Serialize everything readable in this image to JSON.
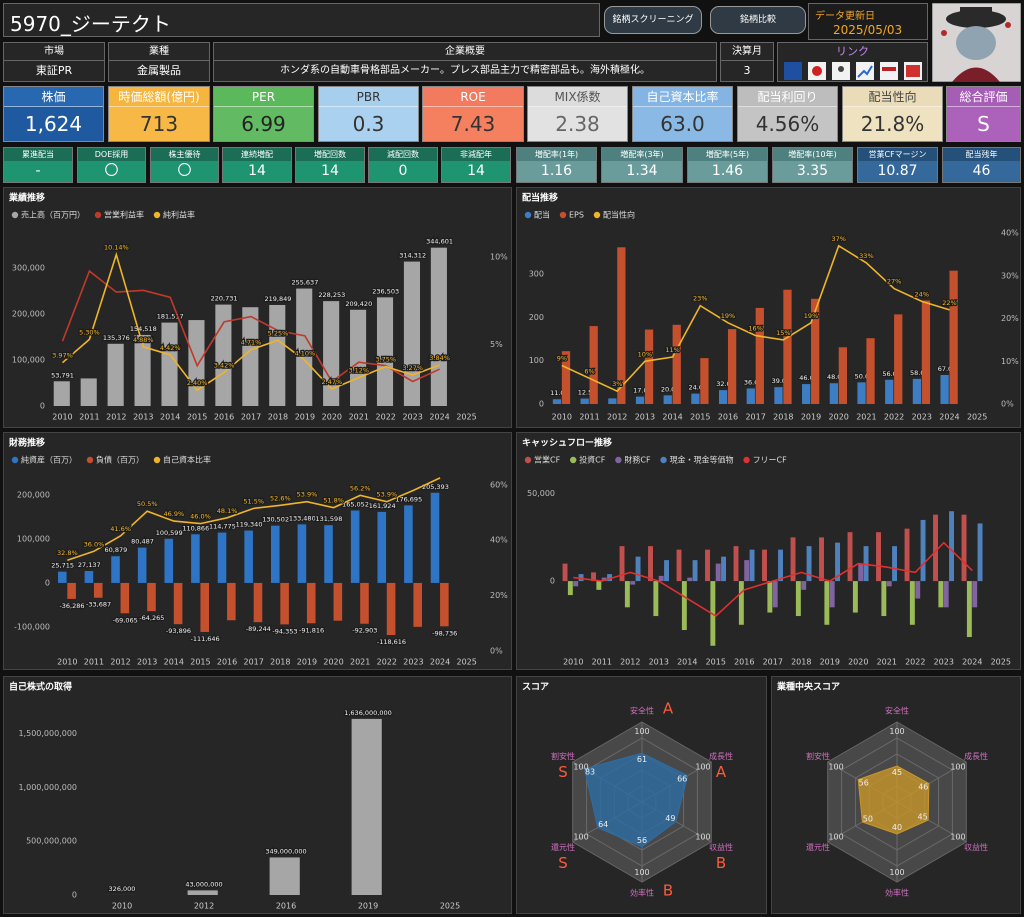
{
  "header": {
    "title": "5970_ジーテクト",
    "buttons": [
      "銘柄スクリーニング",
      "銘柄比較"
    ],
    "update_label": "データ更新日",
    "update_date": "2025/05/03"
  },
  "info": {
    "market": {
      "label": "市場",
      "value": "東証PR"
    },
    "industry": {
      "label": "業種",
      "value": "金属製品"
    },
    "overview": {
      "label": "企業概要",
      "value": "ホンダ系の自動車骨格部品メーカー。プレス部品主力で精密部品も。海外積極化。"
    },
    "fiscal_month": {
      "label": "決算月",
      "value": "3"
    },
    "links": {
      "label": "リンク"
    }
  },
  "metrics": [
    {
      "label": "株価",
      "value": "1,624"
    },
    {
      "label": "時価総額(億円)",
      "value": "713"
    },
    {
      "label": "PER",
      "value": "6.99"
    },
    {
      "label": "PBR",
      "value": "0.3"
    },
    {
      "label": "ROE",
      "value": "7.43"
    },
    {
      "label": "MIX係数",
      "value": "2.38"
    },
    {
      "label": "自己資本比率",
      "value": "63.0"
    },
    {
      "label": "配当利回り",
      "value": "4.56%"
    },
    {
      "label": "配当性向",
      "value": "21.8%"
    },
    {
      "label": "総合評価",
      "value": "S"
    }
  ],
  "sub_metrics": [
    {
      "label": "累進配当",
      "value": "-"
    },
    {
      "label": "DOE採用",
      "value": "〇"
    },
    {
      "label": "株主優待",
      "value": "〇"
    },
    {
      "label": "連続増配",
      "value": "14"
    },
    {
      "label": "増配回数",
      "value": "14"
    },
    {
      "label": "減配回数",
      "value": "0"
    },
    {
      "label": "非減配年",
      "value": "14"
    },
    {
      "label": "増配率(1年)",
      "value": "1.16"
    },
    {
      "label": "増配率(3年)",
      "value": "1.34"
    },
    {
      "label": "増配率(5年)",
      "value": "1.46"
    },
    {
      "label": "増配率(10年)",
      "value": "3.35"
    },
    {
      "label": "営業CFマージン",
      "value": "10.87"
    },
    {
      "label": "配当残年",
      "value": "46"
    }
  ],
  "chart_data": [
    {
      "type": "combo",
      "title": "業績推移",
      "categories": [
        "2010",
        "2011",
        "2012",
        "2013",
        "2014",
        "2015",
        "2016",
        "2017",
        "2018",
        "2019",
        "2020",
        "2021",
        "2022",
        "2023",
        "2024",
        "2025"
      ],
      "series": [
        {
          "name": "売上高（百万円）",
          "color": "#a6a6a6",
          "mark": "bar",
          "values": [
            53791,
            60000,
            135376,
            154518,
            181517,
            187000,
            220731,
            215000,
            219849,
            255637,
            228253,
            209420,
            236503,
            314312,
            344601,
            null
          ],
          "value_labels": [
            "53,791",
            null,
            "135,376",
            "154,518",
            "181,517",
            null,
            "220,731",
            null,
            "219,849",
            "255,637",
            "228,253",
            "209,420",
            "236,503",
            "314,312",
            "344,601",
            null
          ]
        },
        {
          "name": "営業利益率",
          "color": "#c0392b",
          "mark": "line",
          "axis": "y2",
          "values": [
            5.2,
            9.2,
            8.0,
            8.1,
            7.7,
            3.8,
            6.3,
            6.6,
            5.8,
            5.5,
            2.9,
            4.0,
            3.8,
            2.9,
            3.6,
            null
          ]
        },
        {
          "name": "純利益率",
          "color": "#f0b429",
          "mark": "line",
          "axis": "y2",
          "values": [
            3.97,
            5.3,
            10.14,
            4.88,
            4.42,
            2.4,
            3.42,
            4.71,
            5.25,
            4.1,
            2.47,
            3.12,
            3.75,
            3.27,
            3.84,
            null
          ],
          "value_labels": [
            "3.97%",
            "5.30%",
            "10.14%",
            "4.88%",
            "4.42%",
            "2.40%",
            "3.42%",
            "4.71%",
            "5.25%",
            "4.10%",
            "2.47%",
            "3.12%",
            "3.75%",
            "3.27%",
            "3.84%",
            null
          ]
        }
      ],
      "ylim": [
        0,
        370000
      ],
      "yticks": [
        0,
        {
          "value": 100000,
          "label": "100,000"
        },
        {
          "value": 200000,
          "label": "200,000"
        },
        {
          "value": 300000,
          "label": "300,000"
        }
      ],
      "y2lim": [
        1.5,
        11.2
      ],
      "y2ticks": [
        {
          "value": 5,
          "label": "5%"
        },
        {
          "value": 10,
          "label": "10%"
        }
      ],
      "grid": false
    },
    {
      "type": "combo",
      "title": "配当推移",
      "categories": [
        "2010",
        "2011",
        "2012",
        "2013",
        "2014",
        "2015",
        "2016",
        "2017",
        "2018",
        "2019",
        "2020",
        "2021",
        "2022",
        "2023",
        "2024",
        "2025"
      ],
      "series": [
        {
          "name": "配当",
          "color": "#3c7dc4",
          "mark": "bar",
          "values": [
            11.0,
            12.5,
            13.0,
            17.0,
            20.0,
            24.0,
            32.0,
            36.0,
            39.0,
            46.0,
            48.0,
            50.0,
            56.0,
            58.0,
            67.0,
            null
          ],
          "value_labels": [
            "11.0",
            "12.5",
            null,
            "17.0",
            "20.0",
            "24.0",
            "32.0",
            "36.0",
            "39.0",
            "46.0",
            "48.0",
            "50.0",
            "56.0",
            "58.0",
            "67.0",
            null
          ]
        },
        {
          "name": "EPS",
          "color": "#c5502d",
          "mark": "bar",
          "values": [
            122,
            180,
            362,
            172,
            183,
            106,
            173,
            222,
            264,
            243,
            131,
            152,
            207,
            239,
            308,
            null
          ]
        },
        {
          "name": "配当性向",
          "color": "#f0b429",
          "mark": "line",
          "axis": "y2",
          "values": [
            9,
            6,
            3,
            10,
            11,
            23,
            19,
            16,
            15,
            19,
            37,
            33,
            27,
            24,
            22,
            null
          ],
          "value_labels": [
            "9%",
            "6%",
            "3%",
            "10%",
            "11%",
            "23%",
            "19%",
            "16%",
            "15%",
            "19%",
            "37%",
            "33%",
            "27%",
            "24%",
            "22%",
            null
          ]
        }
      ],
      "ylim": [
        0,
        395
      ],
      "yticks": [
        0,
        100,
        200,
        300
      ],
      "y2lim": [
        0,
        40
      ],
      "y2ticks": [
        {
          "value": 0,
          "label": "0%"
        },
        {
          "value": 10,
          "label": "10%"
        },
        {
          "value": 20,
          "label": "20%"
        },
        {
          "value": 30,
          "label": "30%"
        },
        {
          "value": 40,
          "label": "40%"
        }
      ],
      "grid": false
    },
    {
      "type": "combo",
      "title": "財務推移",
      "categories": [
        "2010",
        "2011",
        "2012",
        "2013",
        "2014",
        "2015",
        "2016",
        "2017",
        "2018",
        "2019",
        "2020",
        "2021",
        "2022",
        "2023",
        "2024",
        "2025"
      ],
      "series": [
        {
          "name": "純資産（百万）",
          "color": "#2e75c6",
          "mark": "bar",
          "values": [
            25715,
            27137,
            60879,
            80487,
            100599,
            110866,
            114775,
            119340,
            130502,
            133480,
            131598,
            165052,
            161924,
            176695,
            205393,
            null
          ],
          "value_labels": [
            "25,715",
            "27,137",
            "60,879",
            "80,487",
            "100,599",
            "110,866",
            "114,775",
            "119,340",
            "130,502",
            "133,480",
            "131,598",
            "165,052",
            "161,924",
            "176,695",
            "205,393",
            null
          ]
        },
        {
          "name": "負債（百万）",
          "color": "#c5502d",
          "mark": "bar",
          "values": [
            -36286,
            -33687,
            -69065,
            -64265,
            -93896,
            -111646,
            -85000,
            -89244,
            -94353,
            -91816,
            -86000,
            -92903,
            -118616,
            -100000,
            -98736,
            null
          ],
          "value_labels": [
            "-36,286",
            "-33,687",
            "-69,065",
            "-64,265",
            "-93,896",
            "-111,646",
            null,
            "-89,244",
            "-94,353",
            "-91,816",
            null,
            "-92,903",
            "-118,616",
            null,
            "-98,736",
            null
          ]
        },
        {
          "name": "自己資本比率",
          "color": "#f0b429",
          "mark": "line",
          "axis": "y2",
          "values": [
            32.8,
            36.0,
            41.6,
            50.5,
            46.9,
            46.0,
            48.1,
            51.5,
            52.6,
            53.9,
            51.8,
            56.2,
            53.9,
            58.0,
            62.5,
            null
          ],
          "value_labels": [
            "32.8%",
            "36.0%",
            "41.6%",
            "50.5%",
            "46.9%",
            "46.0%",
            "48.1%",
            "51.5%",
            "52.6%",
            "53.9%",
            "51.8%",
            "56.2%",
            "53.9%",
            null,
            null,
            null
          ]
        }
      ],
      "ylim": [
        -155000,
        255000
      ],
      "yticks": [
        {
          "value": -100000,
          "label": "-100,000"
        },
        0,
        {
          "value": 100000,
          "label": "100,000"
        },
        {
          "value": 200000,
          "label": "200,000"
        }
      ],
      "y2lim": [
        0,
        65
      ],
      "y2ticks": [
        {
          "value": 0,
          "label": "0%"
        },
        {
          "value": 20,
          "label": "20%"
        },
        {
          "value": 40,
          "label": "40%"
        },
        {
          "value": 60,
          "label": "60%"
        }
      ],
      "grid": false
    },
    {
      "type": "combo",
      "title": "キャッシュフロー推移",
      "categories": [
        "2010",
        "2011",
        "2012",
        "2013",
        "2014",
        "2015",
        "2016",
        "2017",
        "2018",
        "2019",
        "2020",
        "2021",
        "2022",
        "2023",
        "2024",
        "2025"
      ],
      "series": [
        {
          "name": "営業CF",
          "color": "#c0504d",
          "mark": "bar",
          "values": [
            10000,
            5000,
            20000,
            20000,
            18000,
            18000,
            20000,
            18000,
            25000,
            25000,
            28000,
            28000,
            30000,
            38000,
            38000,
            null
          ]
        },
        {
          "name": "投資CF",
          "color": "#9bbb59",
          "mark": "bar",
          "values": [
            -8000,
            -5000,
            -15000,
            -20000,
            -28000,
            -37000,
            -25000,
            -18000,
            -20000,
            -25000,
            -18000,
            -20000,
            -25000,
            -15000,
            -32000,
            null
          ]
        },
        {
          "name": "財務CF",
          "color": "#8064a2",
          "mark": "bar",
          "values": [
            -3000,
            2000,
            -2000,
            3000,
            2000,
            10000,
            12000,
            -15000,
            -5000,
            -15000,
            10000,
            -3000,
            -10000,
            -15000,
            -15000,
            null
          ]
        },
        {
          "name": "現金・現金等価物",
          "color": "#4f81bd",
          "mark": "bar",
          "values": [
            4000,
            4000,
            14000,
            12000,
            12000,
            14000,
            18000,
            18000,
            20000,
            22000,
            20000,
            20000,
            35000,
            40000,
            33000,
            null
          ]
        },
        {
          "name": "フリーCF",
          "color": "#e03030",
          "mark": "line",
          "values": [
            2000,
            0,
            5000,
            0,
            -10000,
            -20000,
            -5000,
            0,
            5000,
            0,
            10000,
            8000,
            5000,
            22000,
            6000,
            null
          ]
        }
      ],
      "ylim": [
        -40000,
        63000
      ],
      "yticks": [
        0,
        {
          "value": 50000,
          "label": "50,000"
        }
      ],
      "grid": false
    },
    {
      "type": "bar",
      "title": "自己株式の取得",
      "categories": [
        "2010",
        "2012",
        "2016",
        "2019",
        "2025"
      ],
      "series": [
        {
          "color": "#a6a6a6",
          "mark": "bar",
          "values": [
            326000,
            43000000,
            349000000,
            1636000000,
            null
          ],
          "value_labels": [
            "326,000",
            "43,000,000",
            "349,000,000",
            "1,636,000,000",
            null
          ]
        }
      ],
      "ylim": [
        0,
        1700000000
      ],
      "yticks": [
        0,
        {
          "value": 500000000,
          "label": "500,000,000"
        },
        {
          "value": 1000000000,
          "label": "1,000,000,000"
        },
        {
          "value": 1500000000,
          "label": "1,500,000,000"
        }
      ],
      "grid": false
    },
    {
      "type": "radar",
      "title": "スコア",
      "axes": [
        "安全性",
        "成長性",
        "収益性",
        "効率性",
        "還元性",
        "割安性"
      ],
      "values": [
        61,
        66,
        49,
        56,
        64,
        83
      ],
      "grades": [
        "A",
        "A",
        "B",
        "B",
        "S",
        "S"
      ],
      "color": "#2e6da4",
      "rlim": [
        0,
        100
      ]
    },
    {
      "type": "radar",
      "title": "業種中央スコア",
      "axes": [
        "安全性",
        "成長性",
        "収益性",
        "効率性",
        "還元性",
        "割安性"
      ],
      "values": [
        45,
        46,
        45,
        40,
        50,
        56
      ],
      "color": "#c8962a",
      "rlim": [
        0,
        100
      ]
    }
  ]
}
